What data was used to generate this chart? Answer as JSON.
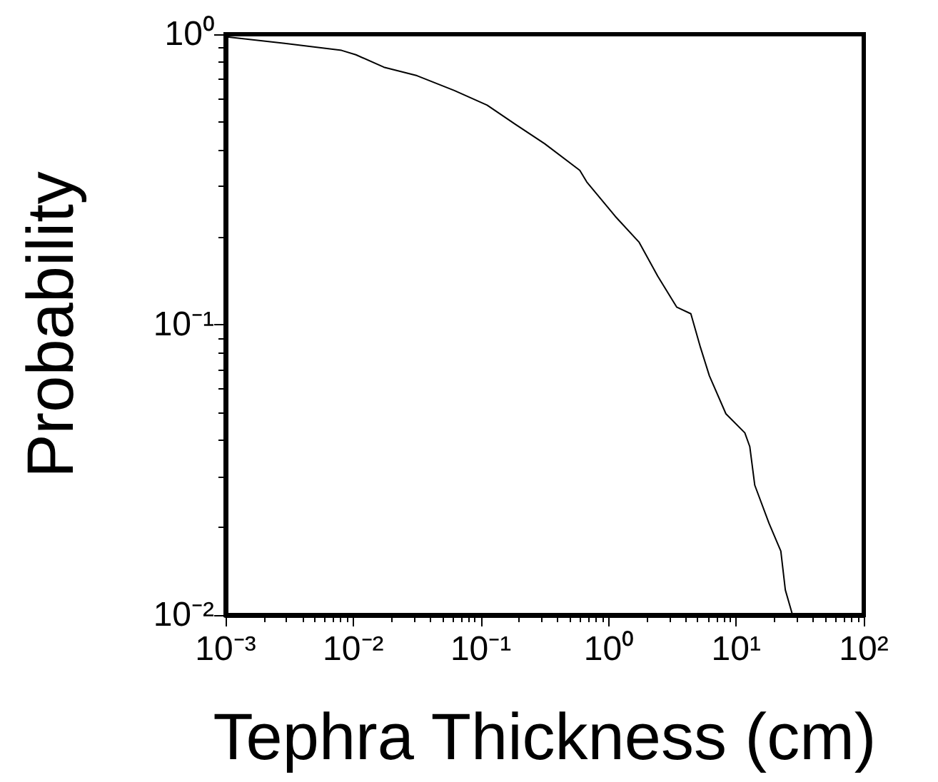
{
  "chart_data": {
    "type": "line",
    "xlabel": "Tephra Thickness (cm)",
    "ylabel": "Probability",
    "log": "xy",
    "grid": false,
    "marker": "none",
    "line_style": "solid",
    "xlim": [
      0.001,
      100
    ],
    "ylim": [
      0.01,
      1
    ],
    "xticks": [
      {
        "value": 0.001,
        "label": "10⁻³"
      },
      {
        "value": 0.01,
        "label": "10⁻²"
      },
      {
        "value": 0.1,
        "label": "10⁻¹"
      },
      {
        "value": 1,
        "label": "10⁰"
      },
      {
        "value": 10,
        "label": "10¹"
      },
      {
        "value": 100,
        "label": "10²"
      }
    ],
    "yticks": [
      {
        "value": 0.01,
        "label": "10⁻²"
      },
      {
        "value": 0.1,
        "label": "10⁻¹"
      },
      {
        "value": 1,
        "label": "10⁰"
      }
    ],
    "series": [
      {
        "color": "#000000",
        "x": [
          0.001,
          0.0029,
          0.0081,
          0.0105,
          0.0174,
          0.0316,
          0.062,
          0.112,
          0.186,
          0.316,
          0.596,
          0.676,
          1.13,
          1.74,
          2.43,
          3.42,
          4.42,
          5.25,
          6.17,
          8.32,
          11.7,
          12.8,
          14.0,
          18.1,
          22.4,
          24.3,
          27.5
        ],
        "values": [
          0.98,
          0.93,
          0.88,
          0.85,
          0.77,
          0.72,
          0.64,
          0.57,
          0.49,
          0.42,
          0.34,
          0.31,
          0.236,
          0.192,
          0.147,
          0.115,
          0.109,
          0.0836,
          0.0667,
          0.0493,
          0.0424,
          0.038,
          0.028,
          0.0207,
          0.0166,
          0.0122,
          0.0101
        ]
      }
    ]
  }
}
